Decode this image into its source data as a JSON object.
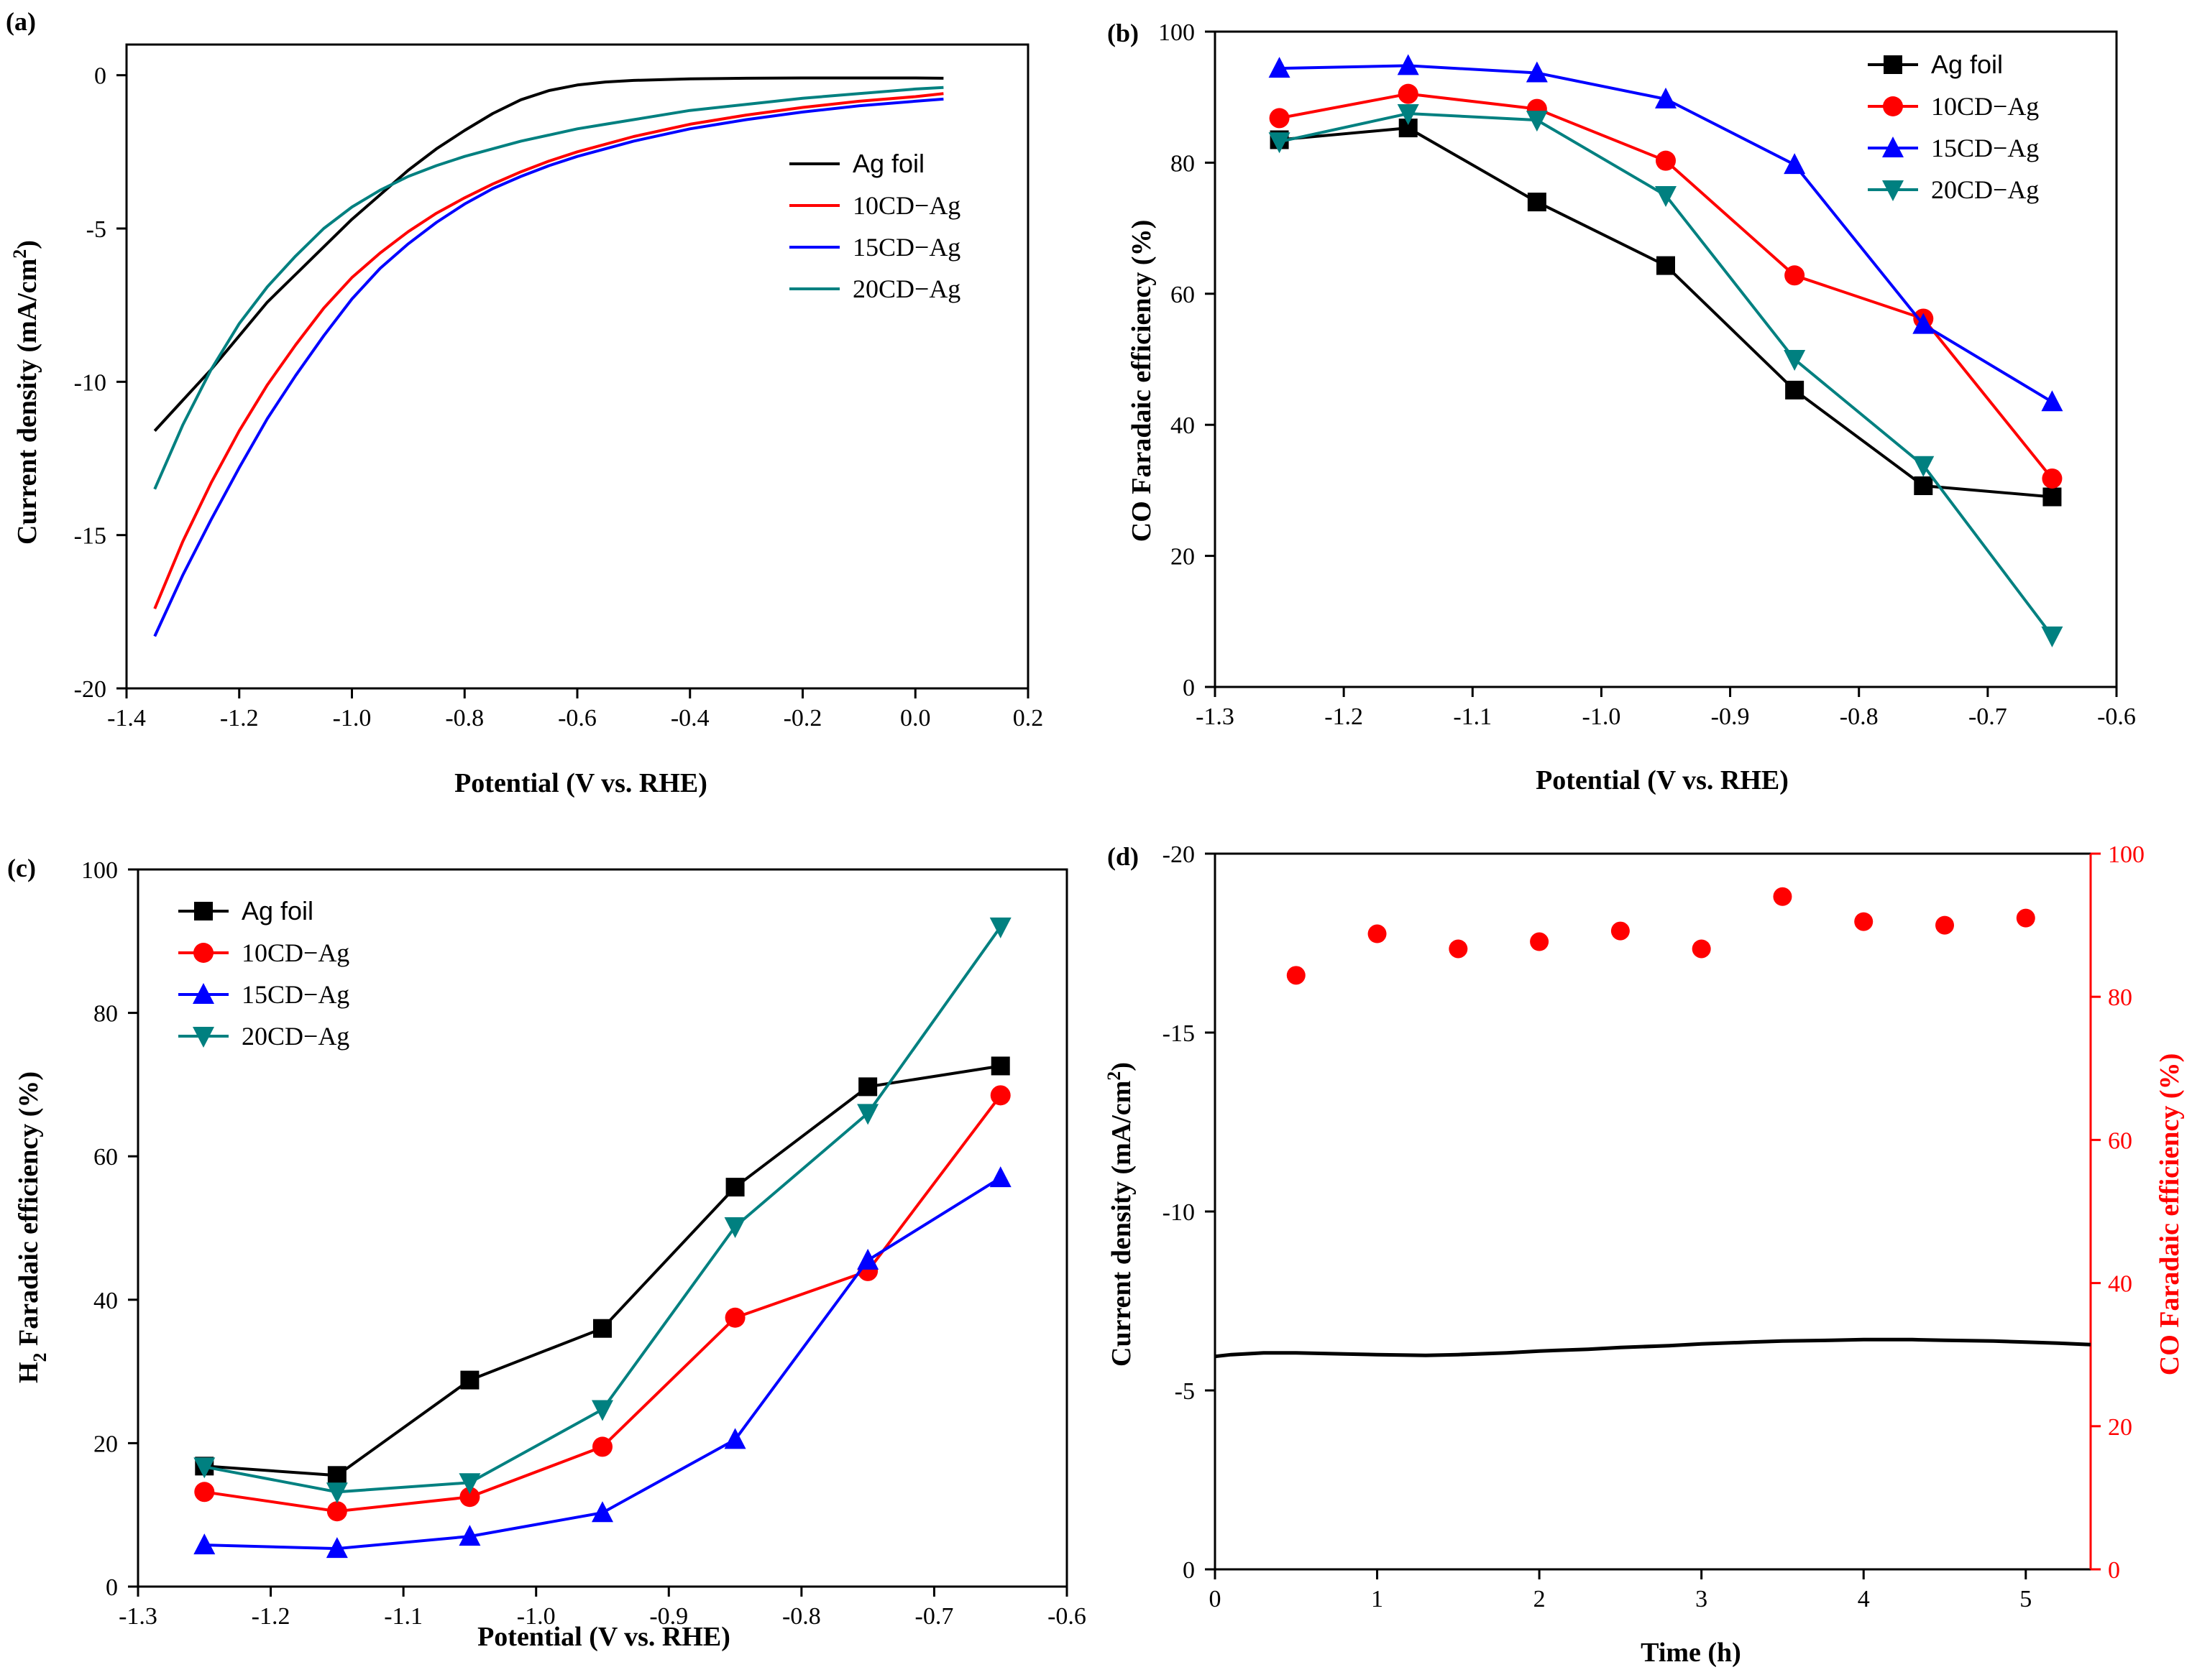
{
  "chart_data": [
    {
      "id": "a",
      "panel_label": "(a)",
      "type": "line",
      "xlabel": "Potential (V vs. RHE)",
      "ylabel_main": "Current density (mA/cm",
      "ylabel_sup": "2",
      "ylabel_tail": ")",
      "xlim": [
        -1.4,
        0.2
      ],
      "ylim": [
        -20,
        1
      ],
      "xticks": [
        -1.4,
        -1.2,
        -1.0,
        -0.8,
        -0.6,
        -0.4,
        -0.2,
        0.0,
        0.2
      ],
      "xtick_labels": [
        "-1.4",
        "-1.2",
        "-1.0",
        "-0.8",
        "-0.6",
        "-0.4",
        "-0.2",
        "0.0",
        "0.2"
      ],
      "yticks": [
        -20,
        -15,
        -10,
        -5,
        0
      ],
      "ytick_labels": [
        "-20",
        "-15",
        "-10",
        "-5",
        "0"
      ],
      "legend": "right",
      "series": [
        {
          "name": "Ag foil",
          "color": "#000000",
          "x": [
            -1.35,
            -1.3,
            -1.25,
            -1.2,
            -1.15,
            -1.1,
            -1.05,
            -1.0,
            -0.95,
            -0.9,
            -0.85,
            -0.8,
            -0.75,
            -0.7,
            -0.65,
            -0.6,
            -0.55,
            -0.5,
            -0.4,
            -0.3,
            -0.2,
            -0.1,
            0.0,
            0.05
          ],
          "y": [
            -11.6,
            -10.6,
            -9.6,
            -8.5,
            -7.4,
            -6.5,
            -5.6,
            -4.7,
            -3.9,
            -3.1,
            -2.4,
            -1.8,
            -1.25,
            -0.8,
            -0.5,
            -0.32,
            -0.22,
            -0.17,
            -0.12,
            -0.1,
            -0.09,
            -0.09,
            -0.09,
            -0.1
          ]
        },
        {
          "name": "10CD−Ag",
          "color": "#ff0000",
          "x": [
            -1.35,
            -1.3,
            -1.25,
            -1.2,
            -1.15,
            -1.1,
            -1.05,
            -1.0,
            -0.95,
            -0.9,
            -0.85,
            -0.8,
            -0.75,
            -0.7,
            -0.65,
            -0.6,
            -0.55,
            -0.5,
            -0.4,
            -0.3,
            -0.2,
            -0.1,
            0.0,
            0.05
          ],
          "y": [
            -17.4,
            -15.2,
            -13.3,
            -11.6,
            -10.1,
            -8.8,
            -7.6,
            -6.6,
            -5.8,
            -5.1,
            -4.5,
            -4.0,
            -3.55,
            -3.15,
            -2.8,
            -2.5,
            -2.25,
            -2.0,
            -1.6,
            -1.3,
            -1.05,
            -0.85,
            -0.7,
            -0.6
          ]
        },
        {
          "name": "15CD−Ag",
          "color": "#0000ff",
          "x": [
            -1.35,
            -1.3,
            -1.25,
            -1.2,
            -1.15,
            -1.1,
            -1.05,
            -1.0,
            -0.95,
            -0.9,
            -0.85,
            -0.8,
            -0.75,
            -0.7,
            -0.65,
            -0.6,
            -0.55,
            -0.5,
            -0.4,
            -0.3,
            -0.2,
            -0.1,
            0.0,
            0.05
          ],
          "y": [
            -18.3,
            -16.3,
            -14.5,
            -12.8,
            -11.2,
            -9.8,
            -8.5,
            -7.3,
            -6.3,
            -5.5,
            -4.8,
            -4.2,
            -3.7,
            -3.3,
            -2.95,
            -2.65,
            -2.4,
            -2.15,
            -1.75,
            -1.45,
            -1.2,
            -1.0,
            -0.85,
            -0.78
          ]
        },
        {
          "name": "20CD−Ag",
          "color": "#008080",
          "x": [
            -1.35,
            -1.3,
            -1.25,
            -1.2,
            -1.15,
            -1.1,
            -1.05,
            -1.0,
            -0.95,
            -0.9,
            -0.85,
            -0.8,
            -0.75,
            -0.7,
            -0.65,
            -0.6,
            -0.55,
            -0.5,
            -0.4,
            -0.3,
            -0.2,
            -0.1,
            0.0,
            0.05
          ],
          "y": [
            -13.5,
            -11.4,
            -9.6,
            -8.1,
            -6.9,
            -5.9,
            -5.0,
            -4.3,
            -3.75,
            -3.3,
            -2.95,
            -2.65,
            -2.4,
            -2.15,
            -1.95,
            -1.75,
            -1.6,
            -1.45,
            -1.15,
            -0.95,
            -0.75,
            -0.6,
            -0.45,
            -0.4
          ]
        }
      ]
    },
    {
      "id": "b",
      "panel_label": "(b)",
      "type": "line",
      "xlabel": "Potential (V vs. RHE)",
      "ylabel": "CO Faradaic efficiency (%)",
      "xlim": [
        -1.3,
        -0.6
      ],
      "ylim": [
        0,
        100
      ],
      "xticks": [
        -1.3,
        -1.2,
        -1.1,
        -1.0,
        -0.9,
        -0.8,
        -0.7,
        -0.6
      ],
      "xtick_labels": [
        "-1.3",
        "-1.2",
        "-1.1",
        "-1.0",
        "-0.9",
        "-0.8",
        "-0.7",
        "-0.6"
      ],
      "yticks": [
        0,
        20,
        40,
        60,
        80,
        100
      ],
      "ytick_labels": [
        "0",
        "20",
        "40",
        "60",
        "80",
        "100"
      ],
      "legend": "top-right",
      "categories": [
        -1.25,
        -1.15,
        -1.05,
        -0.95,
        -0.85,
        -0.75,
        -0.65
      ],
      "series": [
        {
          "name": "Ag foil",
          "color": "#000000",
          "marker": "square",
          "values": [
            83.5,
            85.3,
            74.0,
            64.3,
            45.3,
            30.7,
            29.0
          ]
        },
        {
          "name": "10CD−Ag",
          "color": "#ff0000",
          "marker": "circle",
          "values": [
            86.8,
            90.5,
            88.2,
            80.3,
            62.8,
            56.2,
            31.8
          ]
        },
        {
          "name": "15CD−Ag",
          "color": "#0000ff",
          "marker": "triangle-up",
          "values": [
            94.4,
            94.8,
            93.7,
            89.7,
            79.7,
            55.3,
            43.5
          ]
        },
        {
          "name": "20CD−Ag",
          "color": "#008080",
          "marker": "triangle-down",
          "values": [
            83.2,
            87.5,
            86.5,
            75.0,
            50.0,
            33.8,
            7.8
          ]
        }
      ]
    },
    {
      "id": "c",
      "panel_label": "(c)",
      "type": "line",
      "xlabel": "Potential (V vs. RHE)",
      "ylabel_pre": "H",
      "ylabel_sub": "2",
      "ylabel_post": " Faradaic efficiency (%)",
      "xlim": [
        -1.3,
        -0.6
      ],
      "ylim": [
        0,
        100
      ],
      "xticks": [
        -1.3,
        -1.2,
        -1.1,
        -1.0,
        -0.9,
        -0.8,
        -0.7,
        -0.6
      ],
      "xtick_labels": [
        "-1.3",
        "-1.2",
        "-1.1",
        "-1.0",
        "-0.9",
        "-0.8",
        "-0.7",
        "-0.6"
      ],
      "yticks": [
        0,
        20,
        40,
        60,
        80,
        100
      ],
      "ytick_labels": [
        "0",
        "20",
        "40",
        "60",
        "80",
        "100"
      ],
      "legend": "top-left",
      "categories": [
        -1.25,
        -1.15,
        -1.05,
        -0.95,
        -0.85,
        -0.75,
        -0.65
      ],
      "series": [
        {
          "name": "Ag foil",
          "color": "#000000",
          "marker": "square",
          "values": [
            16.8,
            15.5,
            28.8,
            36.0,
            55.7,
            69.7,
            72.6
          ]
        },
        {
          "name": "10CD−Ag",
          "color": "#ff0000",
          "marker": "circle",
          "values": [
            13.2,
            10.5,
            12.5,
            19.5,
            37.5,
            44.0,
            68.5
          ]
        },
        {
          "name": "15CD−Ag",
          "color": "#0000ff",
          "marker": "triangle-up",
          "values": [
            5.8,
            5.3,
            7.0,
            10.3,
            20.5,
            45.5,
            57.0
          ]
        },
        {
          "name": "20CD−Ag",
          "color": "#008080",
          "marker": "triangle-down",
          "values": [
            16.7,
            13.2,
            14.5,
            24.7,
            50.2,
            66.0,
            92.0
          ]
        }
      ]
    },
    {
      "id": "d",
      "panel_label": "(d)",
      "type": "line+scatter",
      "xlabel": "Time (h)",
      "ylabel_left_main": "Current density (mA/cm",
      "ylabel_left_sup": "2",
      "ylabel_left_tail": ")",
      "ylabel_right": "CO Faradaic efficiency (%)",
      "xlim": [
        0,
        5.4
      ],
      "ylim_left": [
        0,
        -20
      ],
      "ylim_right": [
        0,
        100
      ],
      "xticks": [
        0,
        1,
        2,
        3,
        4,
        5
      ],
      "xtick_labels": [
        "0",
        "1",
        "2",
        "3",
        "4",
        "5"
      ],
      "yticks_left": [
        0,
        -5,
        -10,
        -15,
        -20
      ],
      "ytick_labels_left": [
        "0",
        "-5",
        "-10",
        "-15",
        "-20"
      ],
      "yticks_right": [
        0,
        20,
        40,
        60,
        80,
        100
      ],
      "ytick_labels_right": [
        "0",
        "20",
        "40",
        "60",
        "80",
        "100"
      ],
      "right_axis_color": "#ff0000",
      "current_series": {
        "name": "Current density",
        "color": "#000000",
        "x": [
          0,
          0.1,
          0.3,
          0.5,
          0.8,
          1.0,
          1.3,
          1.5,
          1.8,
          2.0,
          2.3,
          2.5,
          2.8,
          3.0,
          3.3,
          3.5,
          3.8,
          4.0,
          4.3,
          4.5,
          4.8,
          5.0,
          5.2,
          5.4
        ],
        "y": [
          -5.95,
          -6.0,
          -6.05,
          -6.05,
          -6.02,
          -6.0,
          -5.98,
          -6.0,
          -6.05,
          -6.1,
          -6.15,
          -6.2,
          -6.25,
          -6.3,
          -6.35,
          -6.38,
          -6.4,
          -6.42,
          -6.42,
          -6.4,
          -6.38,
          -6.35,
          -6.32,
          -6.28
        ]
      },
      "fe_series": {
        "name": "CO Faradaic efficiency",
        "color": "#ff0000",
        "x": [
          0.5,
          1.0,
          1.5,
          2.0,
          2.5,
          3.0,
          3.5,
          4.0,
          4.5,
          5.0
        ],
        "y": [
          83.0,
          88.8,
          86.7,
          87.7,
          89.2,
          86.7,
          94.0,
          90.5,
          90.0,
          91.0
        ]
      }
    }
  ]
}
